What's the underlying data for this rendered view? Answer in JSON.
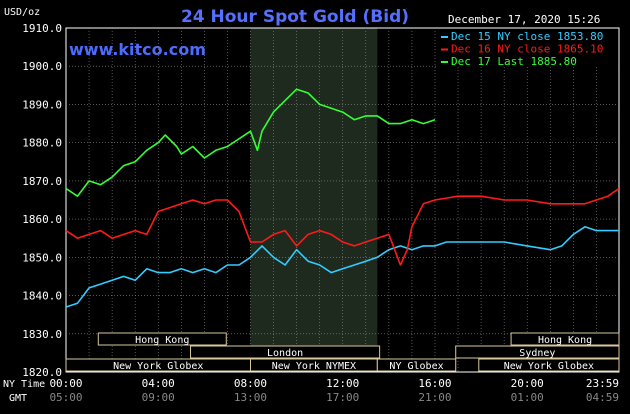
{
  "header": {
    "title": "24 Hour Spot Gold (Bid)",
    "site": "www.kitco.com",
    "date": "December 17, 2020 15:26",
    "unit": "USD/oz"
  },
  "legend": [
    {
      "label": "Dec 15 NY close 1853.80",
      "color": "#33ccff"
    },
    {
      "label": "Dec 16 NY close 1865.10",
      "color": "#ff1a1a"
    },
    {
      "label": "Dec 17 Last 1885.80",
      "color": "#33ff33"
    }
  ],
  "sessions": [
    {
      "label": "Hong Kong",
      "row": 0,
      "start": 1.4,
      "end": 6.95
    },
    {
      "label": "London",
      "row": 1,
      "start": 5.4,
      "end": 13.6
    },
    {
      "label": "New York Globex",
      "row": 2,
      "start": 0,
      "end": 8.0
    },
    {
      "label": "New York NYMEX",
      "row": 2,
      "start": 8.0,
      "end": 13.5
    },
    {
      "label": "NY Globex",
      "row": 2,
      "start": 13.5,
      "end": 16.9
    },
    {
      "label": "Hong Kong",
      "row": 0,
      "start": 19.3,
      "end": 23.98
    },
    {
      "label": "Sydney",
      "row": 1,
      "start": 16.9,
      "end": 23.98
    },
    {
      "label": "New York Globex",
      "row": 2,
      "start": 17.9,
      "end": 23.98
    }
  ],
  "axis_labels": {
    "ny_time": "NY Time",
    "gmt": "GMT",
    "ny_ticks": [
      "00:00",
      "04:00",
      "08:00",
      "12:00",
      "16:00",
      "20:00",
      "23:59"
    ],
    "gmt_ticks": [
      "05:00",
      "09:00",
      "13:00",
      "17:00",
      "21:00",
      "01:00",
      "04:59"
    ]
  },
  "chart_data": {
    "type": "line",
    "title": "24 Hour Spot Gold (Bid)",
    "xlabel": "NY Time",
    "ylabel": "USD/oz",
    "xlim": [
      0,
      23.98
    ],
    "ylim": [
      1820,
      1910
    ],
    "yticks": [
      "1820.0",
      "1830.0",
      "1840.0",
      "1850.0",
      "1860.0",
      "1870.0",
      "1880.0",
      "1890.0",
      "1900.0",
      "1910.0"
    ],
    "grid": true,
    "legend_position": "top-right",
    "highlight_hours": [
      8.0,
      13.5
    ],
    "series": [
      {
        "name": "Dec 15 NY close 1853.80",
        "color": "#33ccff",
        "points": [
          [
            0,
            1837
          ],
          [
            0.5,
            1838
          ],
          [
            1,
            1842
          ],
          [
            1.5,
            1843
          ],
          [
            2,
            1844
          ],
          [
            2.5,
            1845
          ],
          [
            3,
            1844
          ],
          [
            3.5,
            1847
          ],
          [
            4,
            1846
          ],
          [
            4.5,
            1846
          ],
          [
            5,
            1847
          ],
          [
            5.5,
            1846
          ],
          [
            6,
            1847
          ],
          [
            6.5,
            1846
          ],
          [
            7,
            1848
          ],
          [
            7.5,
            1848
          ],
          [
            8,
            1850
          ],
          [
            8.5,
            1853
          ],
          [
            9,
            1850
          ],
          [
            9.5,
            1848
          ],
          [
            10,
            1852
          ],
          [
            10.5,
            1849
          ],
          [
            11,
            1848
          ],
          [
            11.5,
            1846
          ],
          [
            12,
            1847
          ],
          [
            12.5,
            1848
          ],
          [
            13,
            1849
          ],
          [
            13.5,
            1850
          ],
          [
            14,
            1852
          ],
          [
            14.5,
            1853
          ],
          [
            15,
            1852
          ],
          [
            15.5,
            1853
          ],
          [
            16,
            1853
          ],
          [
            16.5,
            1854
          ],
          [
            17,
            1854
          ],
          [
            18,
            1854
          ],
          [
            19,
            1854
          ],
          [
            20,
            1853
          ],
          [
            21,
            1852
          ],
          [
            21.5,
            1853
          ],
          [
            22,
            1856
          ],
          [
            22.5,
            1858
          ],
          [
            23,
            1857
          ],
          [
            23.5,
            1857
          ],
          [
            23.98,
            1857
          ]
        ]
      },
      {
        "name": "Dec 16 NY close 1865.10",
        "color": "#ff1a1a",
        "points": [
          [
            0,
            1857
          ],
          [
            0.5,
            1855
          ],
          [
            1,
            1856
          ],
          [
            1.5,
            1857
          ],
          [
            2,
            1855
          ],
          [
            2.5,
            1856
          ],
          [
            3,
            1857
          ],
          [
            3.5,
            1856
          ],
          [
            4,
            1862
          ],
          [
            4.5,
            1863
          ],
          [
            5,
            1864
          ],
          [
            5.5,
            1865
          ],
          [
            6,
            1864
          ],
          [
            6.5,
            1865
          ],
          [
            7,
            1865
          ],
          [
            7.5,
            1862
          ],
          [
            8,
            1854
          ],
          [
            8.5,
            1854
          ],
          [
            9,
            1856
          ],
          [
            9.5,
            1857
          ],
          [
            10,
            1853
          ],
          [
            10.5,
            1856
          ],
          [
            11,
            1857
          ],
          [
            11.5,
            1856
          ],
          [
            12,
            1854
          ],
          [
            12.5,
            1853
          ],
          [
            13,
            1854
          ],
          [
            13.5,
            1855
          ],
          [
            14,
            1856
          ],
          [
            14.5,
            1848
          ],
          [
            14.8,
            1852
          ],
          [
            15,
            1858
          ],
          [
            15.5,
            1864
          ],
          [
            16,
            1865
          ],
          [
            17,
            1866
          ],
          [
            18,
            1866
          ],
          [
            19,
            1865
          ],
          [
            20,
            1865
          ],
          [
            21,
            1864
          ],
          [
            22,
            1864
          ],
          [
            22.5,
            1864
          ],
          [
            23,
            1865
          ],
          [
            23.5,
            1866
          ],
          [
            23.98,
            1868
          ]
        ]
      },
      {
        "name": "Dec 17 Last 1885.80",
        "color": "#33ff33",
        "points": [
          [
            0,
            1868
          ],
          [
            0.5,
            1866
          ],
          [
            1,
            1870
          ],
          [
            1.5,
            1869
          ],
          [
            2,
            1871
          ],
          [
            2.5,
            1874
          ],
          [
            3,
            1875
          ],
          [
            3.5,
            1878
          ],
          [
            4,
            1880
          ],
          [
            4.3,
            1882
          ],
          [
            4.8,
            1879
          ],
          [
            5,
            1877
          ],
          [
            5.5,
            1879
          ],
          [
            6,
            1876
          ],
          [
            6.5,
            1878
          ],
          [
            7,
            1879
          ],
          [
            7.5,
            1881
          ],
          [
            8,
            1883
          ],
          [
            8.3,
            1878
          ],
          [
            8.5,
            1883
          ],
          [
            9,
            1888
          ],
          [
            9.5,
            1891
          ],
          [
            10,
            1894
          ],
          [
            10.5,
            1893
          ],
          [
            11,
            1890
          ],
          [
            11.5,
            1889
          ],
          [
            12,
            1888
          ],
          [
            12.5,
            1886
          ],
          [
            13,
            1887
          ],
          [
            13.5,
            1887
          ],
          [
            14,
            1885
          ],
          [
            14.5,
            1885
          ],
          [
            15,
            1886
          ],
          [
            15.5,
            1885
          ],
          [
            16,
            1886
          ]
        ]
      }
    ]
  }
}
